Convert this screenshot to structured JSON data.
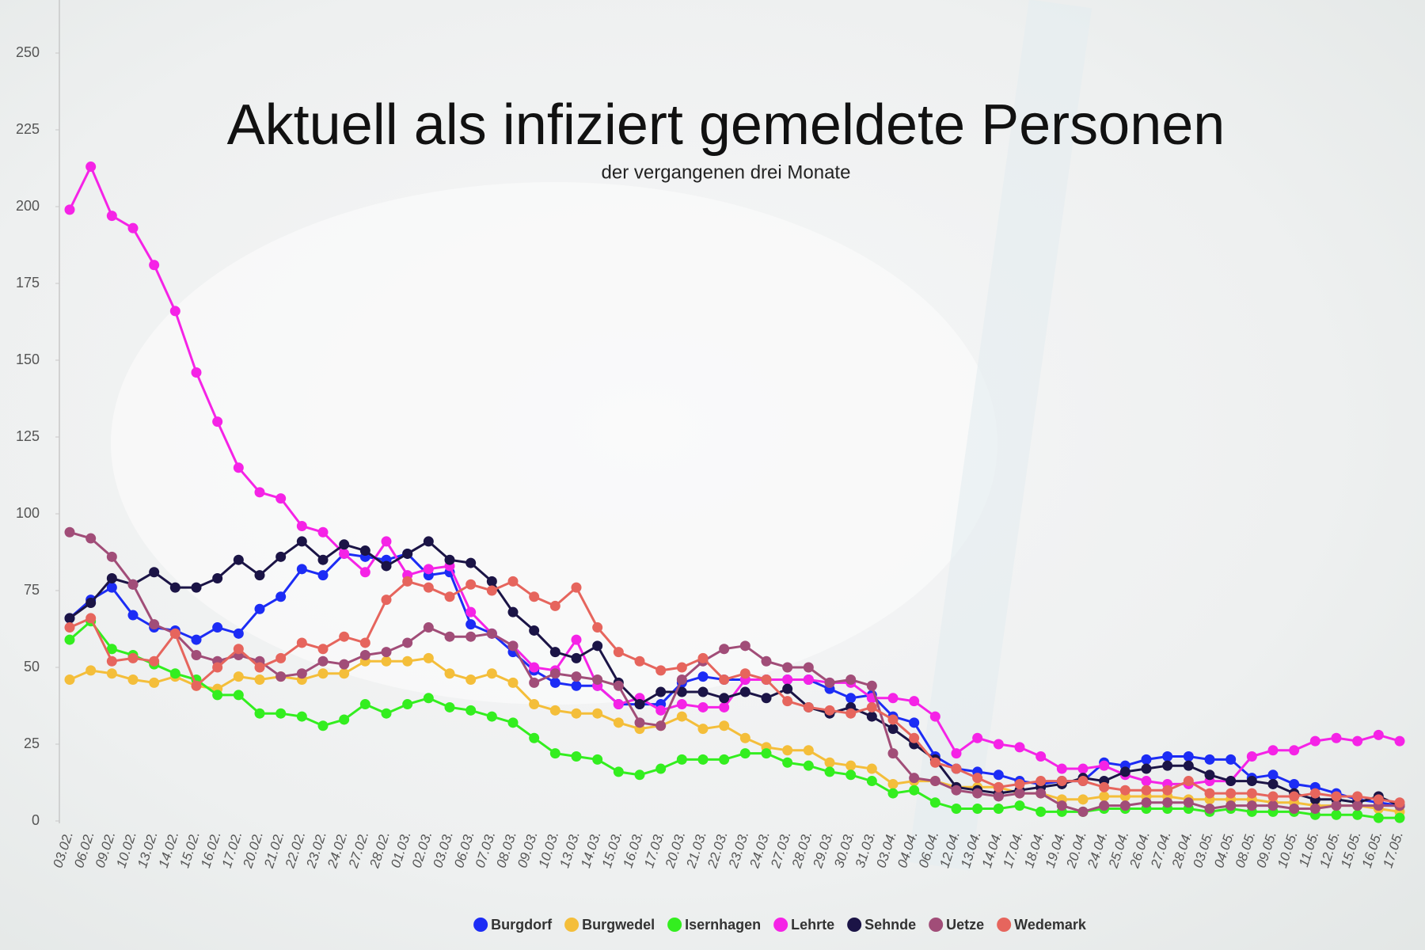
{
  "chart_data": {
    "type": "line",
    "title": "Aktuell als infiziert gemeldete Personen",
    "subtitle": "der vergangenen drei Monate",
    "categories": [
      "03.02.",
      "06.02.",
      "09.02.",
      "10.02.",
      "13.02.",
      "14.02.",
      "15.02.",
      "16.02.",
      "17.02.",
      "20.02.",
      "21.02.",
      "22.02.",
      "23.02.",
      "24.02.",
      "27.02.",
      "28.02.",
      "01.03.",
      "02.03.",
      "03.03.",
      "06.03.",
      "07.03.",
      "08.03.",
      "09.03.",
      "10.03.",
      "13.03.",
      "14.03.",
      "15.03.",
      "16.03.",
      "17.03.",
      "20.03.",
      "21.03.",
      "22.03.",
      "23.03.",
      "24.03.",
      "27.03.",
      "28.03.",
      "29.03.",
      "30.03.",
      "31.03.",
      "03.04.",
      "04.04.",
      "06.04.",
      "12.04.",
      "13.04.",
      "14.04.",
      "17.04.",
      "18.04.",
      "19.04.",
      "20.04.",
      "24.04.",
      "25.04.",
      "26.04.",
      "27.04.",
      "28.04.",
      "03.05.",
      "04.05.",
      "08.05.",
      "09.05.",
      "10.05.",
      "11.05.",
      "12.05.",
      "15.05.",
      "16.05.",
      "17.05."
    ],
    "series": [
      {
        "name": "Burgdorf",
        "color": "#1c2cf5",
        "values": [
          66,
          72,
          76,
          67,
          63,
          62,
          59,
          63,
          61,
          69,
          73,
          82,
          80,
          87,
          86,
          85,
          87,
          80,
          81,
          64,
          61,
          55,
          49,
          45,
          44,
          44,
          38,
          38,
          38,
          45,
          47,
          46,
          46,
          46,
          46,
          46,
          43,
          40,
          41,
          34,
          32,
          21,
          17,
          16,
          15,
          13,
          12,
          13,
          13,
          19,
          18,
          20,
          21,
          21,
          20,
          20,
          14,
          15,
          12,
          11,
          9,
          7,
          6,
          5
        ]
      },
      {
        "name": "Burgwedel",
        "color": "#f4be3a",
        "values": [
          46,
          49,
          48,
          46,
          45,
          47,
          44,
          43,
          47,
          46,
          47,
          46,
          48,
          48,
          52,
          52,
          52,
          53,
          48,
          46,
          48,
          45,
          38,
          36,
          35,
          35,
          32,
          30,
          31,
          34,
          30,
          31,
          27,
          24,
          23,
          23,
          19,
          18,
          17,
          12,
          13,
          13,
          11,
          11,
          11,
          9,
          9,
          7,
          7,
          8,
          8,
          8,
          8,
          7,
          7,
          7,
          7,
          6,
          6,
          5,
          5,
          5,
          4,
          3
        ]
      },
      {
        "name": "Isernhagen",
        "color": "#33ee1f",
        "values": [
          59,
          65,
          56,
          54,
          51,
          48,
          46,
          41,
          41,
          35,
          35,
          34,
          31,
          33,
          38,
          35,
          38,
          40,
          37,
          36,
          34,
          32,
          27,
          22,
          21,
          20,
          16,
          15,
          17,
          20,
          20,
          20,
          22,
          22,
          19,
          18,
          16,
          15,
          13,
          9,
          10,
          6,
          4,
          4,
          4,
          5,
          3,
          3,
          3,
          4,
          4,
          4,
          4,
          4,
          3,
          4,
          3,
          3,
          3,
          2,
          2,
          2,
          1,
          1
        ]
      },
      {
        "name": "Lehrte",
        "color": "#f523e6",
        "values": [
          199,
          213,
          197,
          193,
          181,
          166,
          146,
          130,
          115,
          107,
          105,
          96,
          94,
          87,
          81,
          91,
          80,
          82,
          83,
          68,
          61,
          57,
          50,
          49,
          59,
          44,
          38,
          40,
          36,
          38,
          37,
          37,
          46,
          46,
          46,
          46,
          45,
          45,
          40,
          40,
          39,
          34,
          22,
          27,
          25,
          24,
          21,
          17,
          17,
          18,
          15,
          13,
          12,
          12,
          13,
          13,
          21,
          23,
          23,
          26,
          27,
          26,
          28,
          26
        ]
      },
      {
        "name": "Sehnde",
        "color": "#1b1446",
        "values": [
          66,
          71,
          79,
          77,
          81,
          76,
          76,
          79,
          85,
          80,
          86,
          91,
          85,
          90,
          88,
          83,
          87,
          91,
          85,
          84,
          78,
          68,
          62,
          55,
          53,
          57,
          45,
          38,
          42,
          42,
          42,
          40,
          42,
          40,
          43,
          37,
          35,
          37,
          34,
          30,
          25,
          20,
          11,
          10,
          9,
          10,
          11,
          12,
          14,
          13,
          16,
          17,
          18,
          18,
          15,
          13,
          13,
          12,
          9,
          7,
          7,
          6,
          8,
          5
        ]
      },
      {
        "name": "Uetze",
        "color": "#a14d78",
        "values": [
          94,
          92,
          86,
          77,
          64,
          61,
          54,
          52,
          54,
          52,
          47,
          48,
          52,
          51,
          54,
          55,
          58,
          63,
          60,
          60,
          61,
          57,
          45,
          48,
          47,
          46,
          44,
          32,
          31,
          46,
          52,
          56,
          57,
          52,
          50,
          50,
          45,
          46,
          44,
          22,
          14,
          13,
          10,
          9,
          8,
          9,
          9,
          5,
          3,
          5,
          5,
          6,
          6,
          6,
          4,
          5,
          5,
          5,
          4,
          4,
          5,
          5,
          5,
          5
        ]
      },
      {
        "name": "Wedemark",
        "color": "#e6655d",
        "values": [
          63,
          66,
          52,
          53,
          52,
          61,
          44,
          50,
          56,
          50,
          53,
          58,
          56,
          60,
          58,
          72,
          78,
          76,
          73,
          77,
          75,
          78,
          73,
          70,
          76,
          63,
          55,
          52,
          49,
          50,
          53,
          46,
          48,
          46,
          39,
          37,
          36,
          35,
          37,
          33,
          27,
          19,
          17,
          14,
          11,
          12,
          13,
          13,
          13,
          11,
          10,
          10,
          10,
          13,
          9,
          9,
          9,
          8,
          8,
          9,
          8,
          8,
          7,
          6
        ]
      }
    ],
    "ylim": [
      0,
      260
    ],
    "yticks": [
      0,
      25,
      50,
      75,
      100,
      125,
      150,
      175,
      200,
      225,
      250
    ],
    "grid": false,
    "legend": "bottom"
  }
}
